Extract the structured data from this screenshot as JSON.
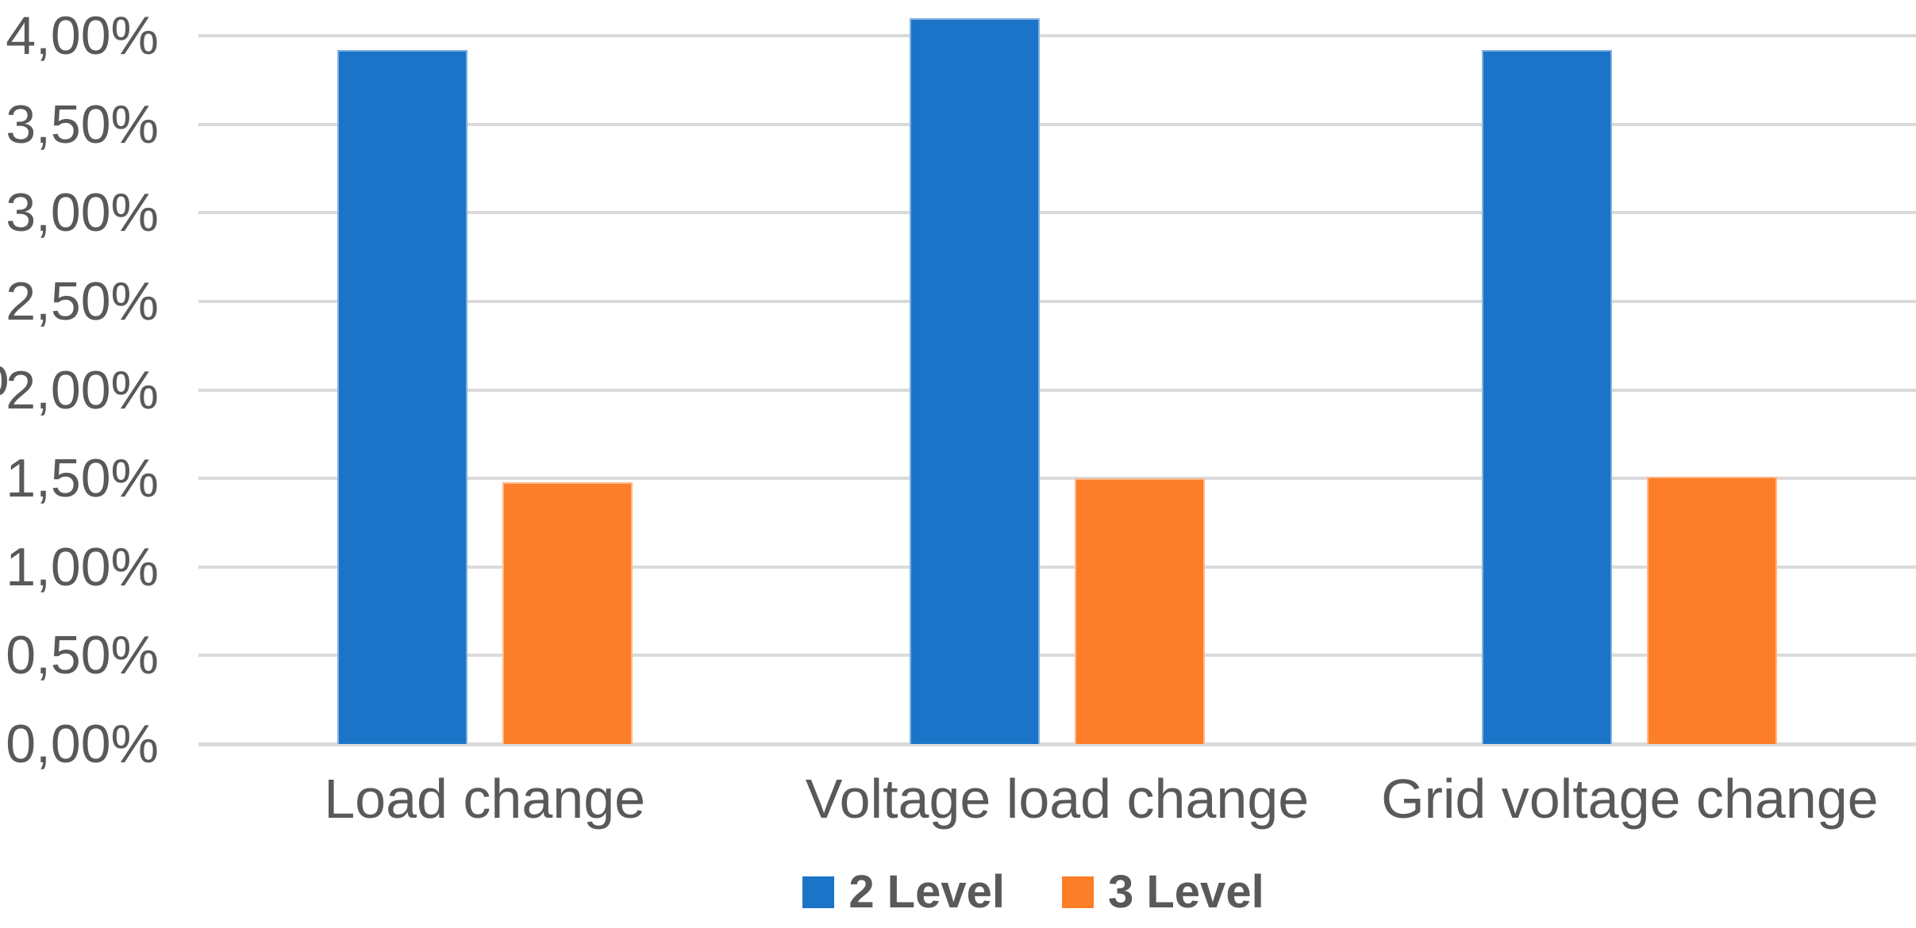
{
  "chart_data": {
    "type": "bar",
    "title": "",
    "xlabel": "",
    "ylabel": "",
    "categories": [
      "Load change",
      "Voltage load change",
      "Grid voltage change"
    ],
    "series": [
      {
        "name": "2 Level",
        "color": "#1B74C8",
        "values": [
          3.92,
          4.1,
          3.92
        ]
      },
      {
        "name": "3 Level",
        "color": "#FD7E28",
        "values": [
          1.48,
          1.5,
          1.51
        ]
      }
    ],
    "value_unit": "%",
    "decimal_separator": ",",
    "ylim": [
      0,
      4.0
    ],
    "ytick_step": 0.5,
    "yticks": [
      {
        "value": 0.0,
        "label": "0,00%"
      },
      {
        "value": 0.5,
        "label": "0,50%"
      },
      {
        "value": 1.0,
        "label": "1,00%"
      },
      {
        "value": 1.5,
        "label": "1,50%"
      },
      {
        "value": 2.0,
        "label": "2,00%"
      },
      {
        "value": 2.5,
        "label": "2,50%"
      },
      {
        "value": 3.0,
        "label": "3,00%"
      },
      {
        "value": 3.5,
        "label": "3,50%"
      },
      {
        "value": 4.0,
        "label": "4,00%"
      }
    ],
    "grid": true,
    "gridline_color": "#DADADA",
    "axis_text_color": "#595959",
    "legend_position": "bottom",
    "legend": [
      {
        "label": "2 Level",
        "color": "#1B74C8"
      },
      {
        "label": "3 Level",
        "color": "#FD7E28"
      }
    ],
    "clipped_left_edge_fragment": ")"
  }
}
